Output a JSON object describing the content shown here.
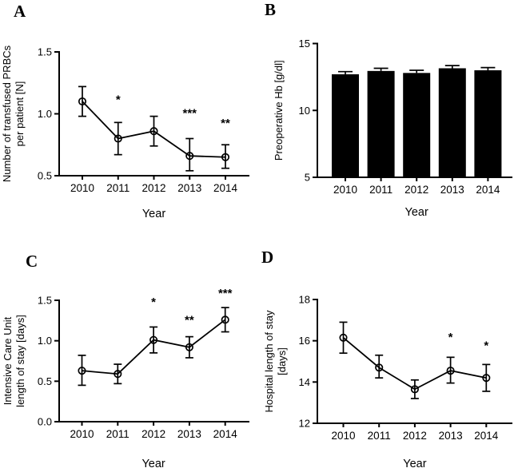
{
  "figure": {
    "background": "#ffffff",
    "ink": "#000000",
    "panel_letters": {
      "a": "A",
      "b": "B",
      "c": "C",
      "d": "D"
    }
  },
  "chart_data": [
    {
      "panel": "A",
      "type": "line",
      "marker": "open-circle",
      "color": "#000000",
      "xlabel": "Year",
      "ylabel_lines": [
        "Number of transfused PRBCs",
        "per patient [N]"
      ],
      "categories": [
        "2010",
        "2011",
        "2012",
        "2013",
        "2014"
      ],
      "values": [
        1.1,
        0.8,
        0.86,
        0.66,
        0.65
      ],
      "err_low": [
        0.98,
        0.67,
        0.74,
        0.54,
        0.56
      ],
      "err_high": [
        1.22,
        0.93,
        0.98,
        0.8,
        0.75
      ],
      "ylim": [
        0.5,
        1.5
      ],
      "ytick_values": [
        0.5,
        1.0,
        1.5
      ],
      "ytick_labels": [
        "0.5",
        "1.0",
        "1.5"
      ],
      "significance": [
        {
          "category": "2011",
          "label": "*",
          "y": 1.13
        },
        {
          "category": "2013",
          "label": "***",
          "y": 1.02
        },
        {
          "category": "2014",
          "label": "**",
          "y": 0.94
        }
      ]
    },
    {
      "panel": "B",
      "type": "bar",
      "color": "#000000",
      "xlabel": "Year",
      "ylabel_lines": [
        "Preoperative Hb [g/dl]"
      ],
      "categories": [
        "2010",
        "2011",
        "2012",
        "2013",
        "2014"
      ],
      "values": [
        12.7,
        12.95,
        12.8,
        13.15,
        13.0
      ],
      "err_high": [
        12.9,
        13.15,
        13.0,
        13.35,
        13.2
      ],
      "ylim": [
        5,
        15
      ],
      "ytick_values": [
        5,
        10,
        15
      ],
      "ytick_labels": [
        "5",
        "10",
        "15"
      ],
      "significance": []
    },
    {
      "panel": "C",
      "type": "line",
      "marker": "open-circle",
      "color": "#000000",
      "xlabel": "Year",
      "ylabel_lines": [
        "Intensive Care Unit",
        "length of stay [days]"
      ],
      "categories": [
        "2010",
        "2011",
        "2012",
        "2013",
        "2014"
      ],
      "values": [
        0.63,
        0.59,
        1.01,
        0.92,
        1.26
      ],
      "err_low": [
        0.45,
        0.47,
        0.85,
        0.79,
        1.11
      ],
      "err_high": [
        0.82,
        0.71,
        1.17,
        1.05,
        1.41
      ],
      "ylim": [
        0.0,
        1.5
      ],
      "ytick_values": [
        0.0,
        0.5,
        1.0,
        1.5
      ],
      "ytick_labels": [
        "0.0",
        "0.5",
        "1.0",
        "1.5"
      ],
      "significance": [
        {
          "category": "2012",
          "label": "*",
          "y": 1.5
        },
        {
          "category": "2013",
          "label": "**",
          "y": 1.28
        },
        {
          "category": "2014",
          "label": "***",
          "y": 1.61
        }
      ]
    },
    {
      "panel": "D",
      "type": "line",
      "marker": "open-circle",
      "color": "#000000",
      "xlabel": "Year",
      "ylabel_lines": [
        "Hospital length of stay",
        "[days]"
      ],
      "categories": [
        "2010",
        "2011",
        "2012",
        "2013",
        "2014"
      ],
      "values": [
        16.15,
        14.7,
        13.65,
        14.55,
        14.2
      ],
      "err_low": [
        15.4,
        14.2,
        13.2,
        13.95,
        13.55
      ],
      "err_high": [
        16.9,
        15.3,
        14.1,
        15.2,
        14.85
      ],
      "ylim": [
        12,
        18
      ],
      "ytick_values": [
        12,
        14,
        16,
        18
      ],
      "ytick_labels": [
        "12",
        "14",
        "16",
        "18"
      ],
      "significance": [
        {
          "category": "2013",
          "label": "*",
          "y": 16.25
        },
        {
          "category": "2014",
          "label": "*",
          "y": 15.85
        }
      ]
    }
  ]
}
